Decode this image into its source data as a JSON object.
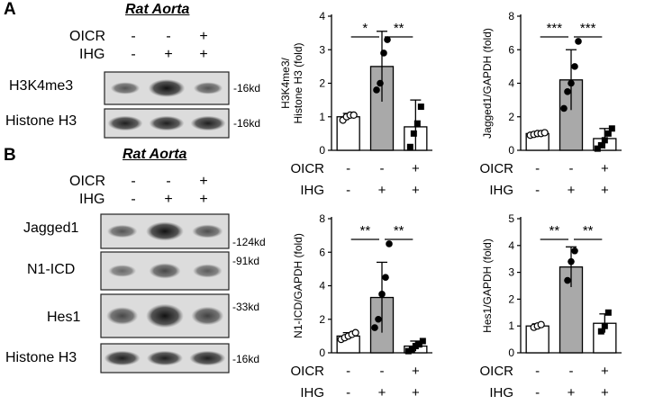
{
  "panel_a": {
    "letter": "A",
    "title": "Rat Aorta",
    "conditions": {
      "oicr_label": "OICR",
      "ihg_label": "IHG",
      "oicr": [
        "-",
        "-",
        "+"
      ],
      "ihg": [
        "-",
        "+",
        "+"
      ]
    },
    "blots": [
      {
        "label": "H3K4me3",
        "kd": "-16kd",
        "intensity": [
          0.45,
          0.95,
          0.45
        ]
      },
      {
        "label": "Histone H3",
        "kd": "-16kd",
        "intensity": [
          0.85,
          0.85,
          0.85
        ]
      }
    ]
  },
  "panel_b": {
    "letter": "B",
    "title": "Rat Aorta",
    "conditions": {
      "oicr_label": "OICR",
      "ihg_label": "IHG",
      "oicr": [
        "-",
        "-",
        "+"
      ],
      "ihg": [
        "-",
        "+",
        "+"
      ]
    },
    "blots": [
      {
        "label": "Jagged1",
        "kd": "-124kd",
        "intensity": [
          0.45,
          0.95,
          0.5
        ]
      },
      {
        "label": "N1-ICD",
        "kd": "-91kd",
        "intensity": [
          0.3,
          0.55,
          0.4
        ]
      },
      {
        "label": "Hes1",
        "kd": "-33kd",
        "intensity": [
          0.55,
          0.95,
          0.6
        ]
      },
      {
        "label": "Histone H3",
        "kd": "-16kd",
        "intensity": [
          0.85,
          0.85,
          0.85
        ]
      }
    ]
  },
  "colors": {
    "control_bar": "#ffffff",
    "ihg_bar": "#a9a9a9",
    "oicr_bar": "#ffffff"
  },
  "chart_data": [
    {
      "type": "bar",
      "ylabel": "H3K4me3/ Histone H3 (fold)",
      "ylabel_lines": [
        "H3K4me3/",
        "Histone H3 (fold)"
      ],
      "ylim": [
        0,
        4
      ],
      "yticks": [
        "0",
        "1",
        "2",
        "3",
        "4"
      ],
      "values": [
        1.0,
        2.5,
        0.7
      ],
      "errors": [
        0.1,
        1.05,
        0.8
      ],
      "points": [
        [
          0.9,
          1.0,
          1.05,
          1.05
        ],
        [
          1.8,
          2.0,
          2.9,
          3.3
        ],
        [
          0.1,
          0.5,
          0.8,
          1.3
        ]
      ],
      "significance": [
        {
          "from": 0,
          "to": 1,
          "label": "*"
        },
        {
          "from": 1,
          "to": 2,
          "label": "**"
        }
      ],
      "oicr": [
        "-",
        "-",
        "+"
      ],
      "ihg": [
        "-",
        "+",
        "+"
      ],
      "oicr_label": "OICR",
      "ihg_label": "IHG"
    },
    {
      "type": "bar",
      "ylabel": "Jagged1/GAPDH (fold)",
      "ylabel_lines": [
        "Jagged1/GAPDH (fold)"
      ],
      "ylim": [
        0,
        8
      ],
      "yticks": [
        "0",
        "2",
        "4",
        "6",
        "8"
      ],
      "values": [
        1.0,
        4.2,
        0.7
      ],
      "errors": [
        0.1,
        1.8,
        0.6
      ],
      "points": [
        [
          0.9,
          0.95,
          1.0,
          1.0,
          1.05
        ],
        [
          2.5,
          3.5,
          4.0,
          5.0,
          6.5
        ],
        [
          0.1,
          0.3,
          0.6,
          1.0,
          1.3
        ]
      ],
      "significance": [
        {
          "from": 0,
          "to": 1,
          "label": "***"
        },
        {
          "from": 1,
          "to": 2,
          "label": "***"
        }
      ],
      "oicr": [
        "-",
        "-",
        "+"
      ],
      "ihg": [
        "-",
        "+",
        "+"
      ],
      "oicr_label": "OICR",
      "ihg_label": "IHG"
    },
    {
      "type": "bar",
      "ylabel": "N1-ICD/GAPDH (fold)",
      "ylabel_lines": [
        "N1-ICD/GAPDH (fold)"
      ],
      "ylim": [
        0,
        8
      ],
      "yticks": [
        "0",
        "2",
        "4",
        "6",
        "8"
      ],
      "values": [
        1.0,
        3.3,
        0.4
      ],
      "errors": [
        0.2,
        2.1,
        0.3
      ],
      "points": [
        [
          0.8,
          0.9,
          1.0,
          1.1,
          1.2
        ],
        [
          1.5,
          2.0,
          3.5,
          4.5,
          6.5
        ],
        [
          0.1,
          0.2,
          0.4,
          0.5,
          0.7
        ]
      ],
      "significance": [
        {
          "from": 0,
          "to": 1,
          "label": "**"
        },
        {
          "from": 1,
          "to": 2,
          "label": "**"
        }
      ],
      "oicr": [
        "-",
        "-",
        "+"
      ],
      "ihg": [
        "-",
        "+",
        "+"
      ],
      "oicr_label": "OICR",
      "ihg_label": "IHG"
    },
    {
      "type": "bar",
      "ylabel": "Hes1/GAPDH (fold)",
      "ylabel_lines": [
        "Hes1/GAPDH (fold)"
      ],
      "ylim": [
        0,
        5
      ],
      "yticks": [
        "0",
        "1",
        "2",
        "3",
        "4",
        "5"
      ],
      "values": [
        1.0,
        3.2,
        1.1
      ],
      "errors": [
        0.08,
        0.75,
        0.35
      ],
      "points": [
        [
          0.95,
          1.0,
          1.05
        ],
        [
          2.7,
          3.4,
          3.8
        ],
        [
          0.8,
          1.0,
          1.5
        ]
      ],
      "significance": [
        {
          "from": 0,
          "to": 1,
          "label": "**"
        },
        {
          "from": 1,
          "to": 2,
          "label": "**"
        }
      ],
      "oicr": [
        "-",
        "-",
        "+"
      ],
      "ihg": [
        "-",
        "+",
        "+"
      ],
      "oicr_label": "OICR",
      "ihg_label": "IHG"
    }
  ]
}
